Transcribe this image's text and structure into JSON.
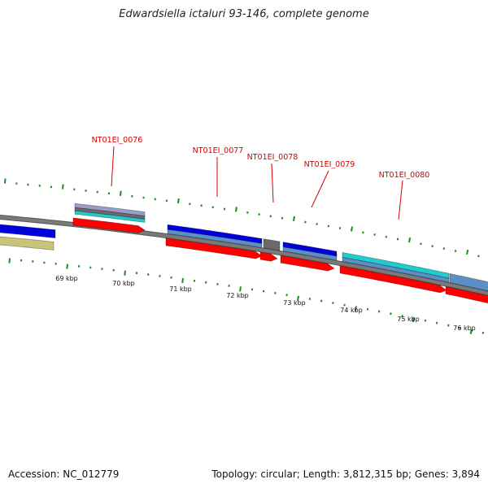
{
  "title": "Edwardsiella ictaluri 93-146, complete genome",
  "footer": {
    "accession": "Accession: NC_012779",
    "topology": "Topology: circular; Length: 3,812,315 bp; Genes: 3,894"
  },
  "colors": {
    "backbone": "#7a7a7a",
    "tick": "#1f8a1f",
    "label": "#d40000",
    "cds": "#ff0000",
    "blue": "#0000dd",
    "steel": "#5b8fc7",
    "cyan": "#22cccc",
    "olive": "#c8c47a",
    "gray": "#6a6a6a",
    "lavender": "#9c9cc8"
  },
  "gene_labels": [
    {
      "id": "g0076",
      "text": "NT01EI_0076"
    },
    {
      "id": "g0077",
      "text": "NT01EI_0077"
    },
    {
      "id": "g0078",
      "text": "NT01EI_0078"
    },
    {
      "id": "g0079",
      "text": "NT01EI_0079"
    },
    {
      "id": "g0080",
      "text": "NT01EI_0080"
    }
  ],
  "kbp_labels": [
    "69 kbp",
    "70 kbp",
    "71 kbp",
    "72 kbp",
    "73 kbp",
    "74 kbp",
    "75 kbp",
    "76 kbp"
  ]
}
